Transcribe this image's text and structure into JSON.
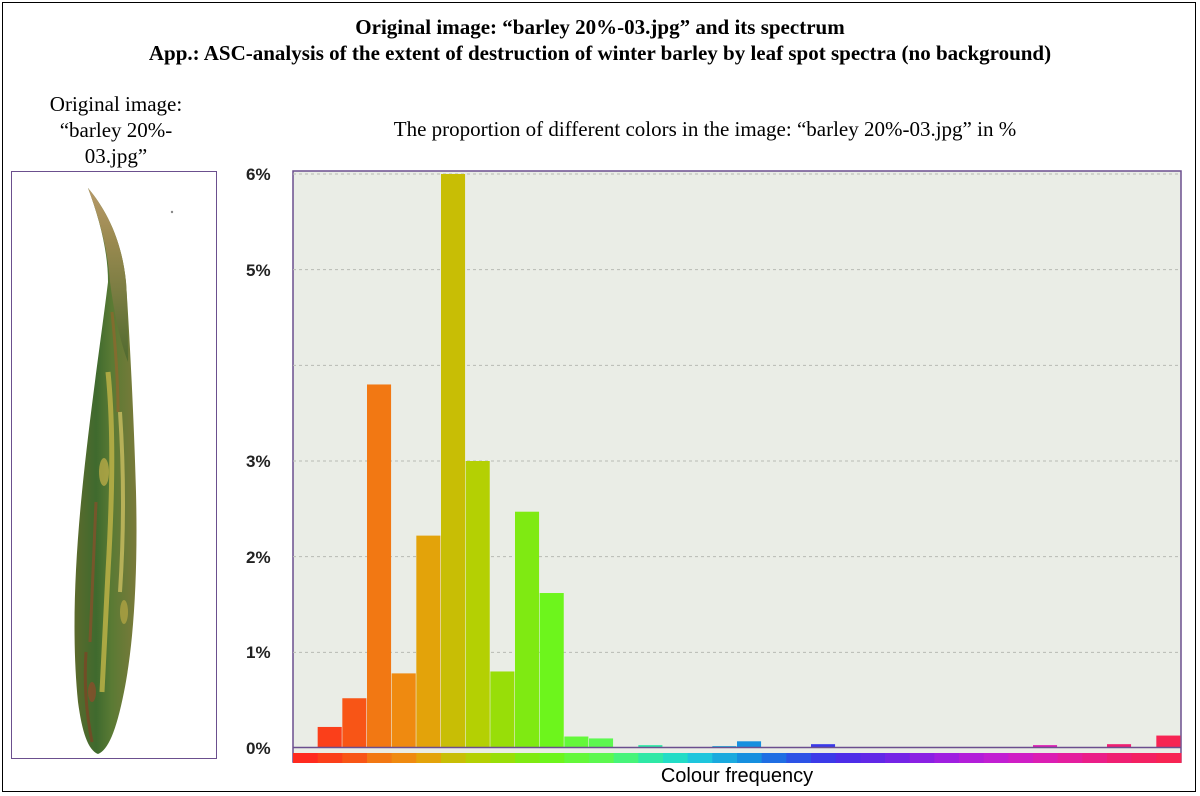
{
  "header": {
    "title_line1": "Original image: “barley 20%-03.jpg” and its spectrum",
    "title_line2": "App.: ASC-analysis of the extent of destruction of winter barley by leaf spot spectra (no background)"
  },
  "original": {
    "label_line1": "Original image:",
    "label_line2": "“barley 20%-",
    "label_line3": "03.jpg”"
  },
  "colors": {
    "plot_bg": "#eaede6",
    "frame_purple": "#6b4f8e",
    "grid": "#b8bbb4"
  },
  "chart_data": {
    "type": "bar",
    "title": "The proportion of different colors in the image: “barley 20%-03.jpg” in %",
    "xlabel": "Colour frequency",
    "ylabel": "",
    "yticks": [
      "0%",
      "1%",
      "2%",
      "3%",
      "5%",
      "6%"
    ],
    "ylim": [
      0,
      6
    ],
    "grid": true,
    "values": [
      0.0,
      0.22,
      0.52,
      3.8,
      0.78,
      2.22,
      6.0,
      3.0,
      0.8,
      2.47,
      1.62,
      0.12,
      0.1,
      0.0,
      0.03,
      0.0,
      0.0,
      0.02,
      0.07,
      0.0,
      0.0,
      0.04,
      0.0,
      0.0,
      0.0,
      0.0,
      0.0,
      0.0,
      0.0,
      0.0,
      0.03,
      0.0,
      0.0,
      0.04,
      0.0,
      0.13
    ],
    "bar_colors": [
      "#ff2a1f",
      "#fb3f1a",
      "#f85516",
      "#f27813",
      "#ef8a10",
      "#e3a30a",
      "#c8be05",
      "#b4d003",
      "#98de08",
      "#7fea12",
      "#6df51c",
      "#64f83a",
      "#5cf84f",
      "#47f47a",
      "#2fe8a6",
      "#22dcc6",
      "#1ec6dd",
      "#1aaade",
      "#168fdf",
      "#1f6ee3",
      "#2c52e6",
      "#3b3ae8",
      "#4d2de8",
      "#6128e7",
      "#7424e6",
      "#8a20e3",
      "#9f1fe0",
      "#b21ed9",
      "#c11fd2",
      "#cf1ec5",
      "#db1eb3",
      "#e41e9e",
      "#ea1e88",
      "#ef1f72",
      "#f32162",
      "#f72453"
    ]
  }
}
